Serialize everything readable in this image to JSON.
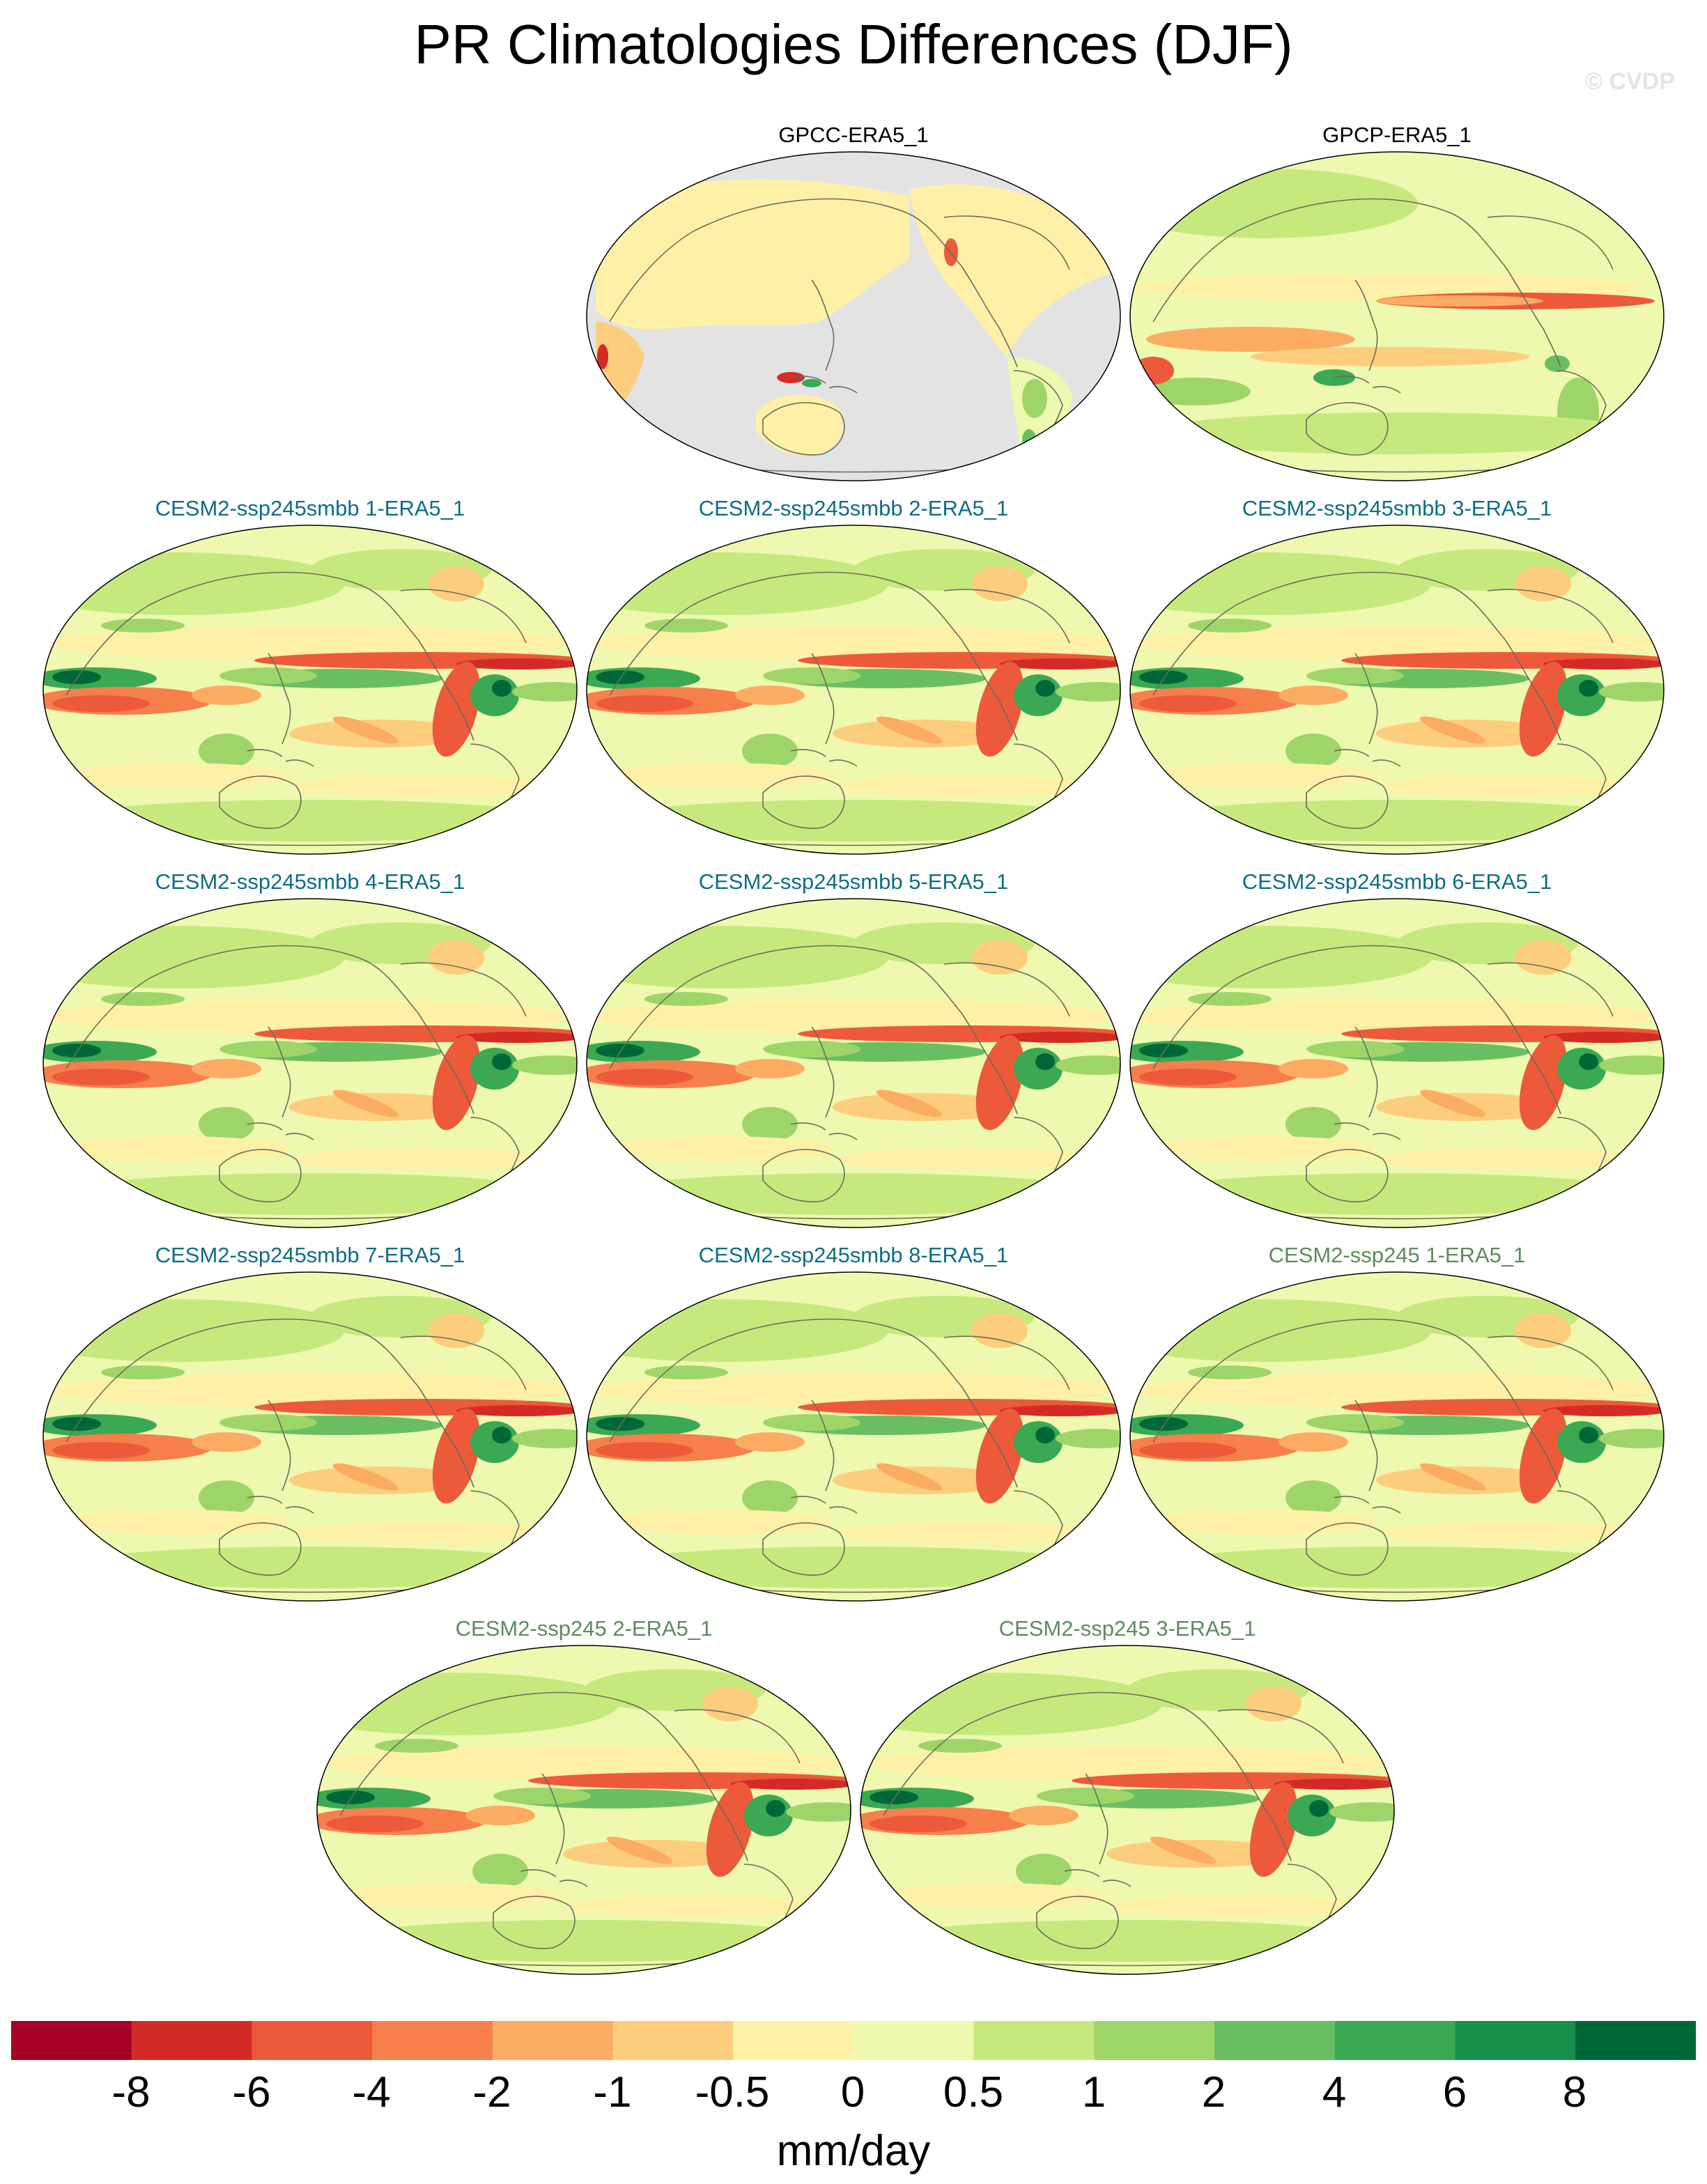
{
  "figure": {
    "title": "PR Climatologies Differences (DJF)",
    "watermark": "© CVDP",
    "units": "mm/day"
  },
  "panels": [
    {
      "id": "gpcc",
      "title": "GPCC-ERA5_1",
      "title_color": "#000000",
      "style": "land"
    },
    {
      "id": "gpcp",
      "title": "GPCP-ERA5_1",
      "title_color": "#000000",
      "style": "obs"
    },
    {
      "id": "sm1",
      "title": "CESM2-ssp245smbb 1-ERA5_1",
      "title_color": "#0b6e83",
      "style": "model"
    },
    {
      "id": "sm2",
      "title": "CESM2-ssp245smbb 2-ERA5_1",
      "title_color": "#0b6e83",
      "style": "model"
    },
    {
      "id": "sm3",
      "title": "CESM2-ssp245smbb 3-ERA5_1",
      "title_color": "#0b6e83",
      "style": "model"
    },
    {
      "id": "sm4",
      "title": "CESM2-ssp245smbb 4-ERA5_1",
      "title_color": "#0b6e83",
      "style": "model"
    },
    {
      "id": "sm5",
      "title": "CESM2-ssp245smbb 5-ERA5_1",
      "title_color": "#0b6e83",
      "style": "model"
    },
    {
      "id": "sm6",
      "title": "CESM2-ssp245smbb 6-ERA5_1",
      "title_color": "#0b6e83",
      "style": "model"
    },
    {
      "id": "sm7",
      "title": "CESM2-ssp245smbb 7-ERA5_1",
      "title_color": "#0b6e83",
      "style": "model"
    },
    {
      "id": "sm8",
      "title": "CESM2-ssp245smbb 8-ERA5_1",
      "title_color": "#0b6e83",
      "style": "model"
    },
    {
      "id": "s1",
      "title": "CESM2-ssp245 1-ERA5_1",
      "title_color": "#5e8a5e",
      "style": "model"
    },
    {
      "id": "s2",
      "title": "CESM2-ssp245 2-ERA5_1",
      "title_color": "#5e8a5e",
      "style": "model"
    },
    {
      "id": "s3",
      "title": "CESM2-ssp245 3-ERA5_1",
      "title_color": "#5e8a5e",
      "style": "model"
    }
  ],
  "colorbar": {
    "colors": [
      "#a50026",
      "#d42b26",
      "#ec5a3a",
      "#f67f4b",
      "#fcab63",
      "#fdcd7e",
      "#fef1a7",
      "#eef8ae",
      "#c6e97d",
      "#9ed569",
      "#6abe62",
      "#3ba853",
      "#14904a",
      "#006837"
    ],
    "labels": [
      "-8",
      "-6",
      "-4",
      "-2",
      "-1",
      "-0.5",
      "0",
      "0.5",
      "1",
      "2",
      "4",
      "6",
      "8"
    ]
  }
}
